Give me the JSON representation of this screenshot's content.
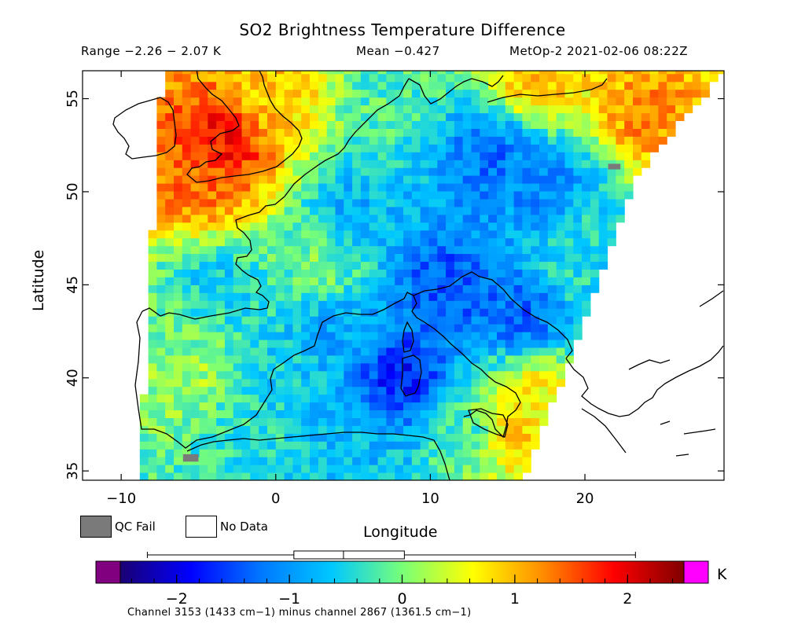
{
  "header": {
    "title": "SO2 Brightness Temperature Difference",
    "range": "Range −2.26 − 2.07 K",
    "mean": "Mean −0.427",
    "satellite": "MetOp-2 2021-02-06 08:22Z"
  },
  "legend": {
    "qc_fail": "QC Fail",
    "no_data": "No Data",
    "qc_color": "#7a7a7a",
    "nodata_color": "#ffffff"
  },
  "colorbar": {
    "unit": "K",
    "min": -2.5,
    "max": 2.5,
    "ticks": [
      -2,
      -1,
      0,
      1,
      2
    ],
    "tick_labels": [
      "−2",
      "−1",
      "0",
      "1",
      "2"
    ],
    "low_overflow_color": "#800080",
    "high_overflow_color": "#ff00ff",
    "colors": [
      "#1a0073",
      "#0000ff",
      "#0078ff",
      "#00c8ff",
      "#78ff78",
      "#ffff00",
      "#ff8c00",
      "#ff0000",
      "#800000"
    ],
    "caption": "Channel 3153 (1433 cm−1) minus channel 2867 (1361.5 cm−1)",
    "boxplot": {
      "whisker_low": -2.26,
      "q1": -0.96,
      "median": -0.52,
      "q3": 0.02,
      "whisker_high": 2.07
    }
  },
  "chart_data": {
    "type": "heatmap",
    "title": "SO2 Brightness Temperature Difference",
    "xlabel": "Longitude",
    "ylabel": "Latitude",
    "xlim": [
      -12.5,
      29
    ],
    "ylim": [
      34.5,
      56.5
    ],
    "xticks": [
      -10,
      0,
      10,
      20
    ],
    "yticks": [
      35,
      40,
      45,
      50,
      55
    ],
    "value_range": [
      -2.26,
      2.07
    ],
    "mean": -0.427,
    "units": "K",
    "swath_west_edge": [
      [
        -7.3,
        56.5
      ],
      [
        -8.2,
        45
      ],
      [
        -8.8,
        34.5
      ]
    ],
    "swath_east_edge": [
      [
        29,
        56.5
      ],
      [
        23.5,
        51
      ],
      [
        19.5,
        42
      ],
      [
        16,
        34.5
      ]
    ],
    "regions": [
      {
        "lon": -3.5,
        "lat": 52.5,
        "value": 1.9
      },
      {
        "lon": -5,
        "lat": 50.5,
        "value": 1.4
      },
      {
        "lon": 0,
        "lat": 55.5,
        "value": 0.9
      },
      {
        "lon": 24,
        "lat": 54,
        "value": 1.3
      },
      {
        "lon": 17,
        "lat": 56,
        "value": 1.0
      },
      {
        "lon": 27,
        "lat": 52,
        "value": 0.9
      },
      {
        "lon": 7,
        "lat": 55,
        "value": -0.2
      },
      {
        "lon": 14,
        "lat": 52,
        "value": -1.3
      },
      {
        "lon": 18,
        "lat": 50,
        "value": -1.2
      },
      {
        "lon": 5,
        "lat": 49,
        "value": -0.8
      },
      {
        "lon": 3,
        "lat": 46,
        "value": 0.0
      },
      {
        "lon": 11,
        "lat": 45,
        "value": -1.5
      },
      {
        "lon": 16,
        "lat": 43.5,
        "value": -1.4
      },
      {
        "lon": 8,
        "lat": 40,
        "value": -1.8
      },
      {
        "lon": 4,
        "lat": 42.5,
        "value": -0.9
      },
      {
        "lon": 1,
        "lat": 40,
        "value": -0.6
      },
      {
        "lon": -4,
        "lat": 45,
        "value": -0.6
      },
      {
        "lon": -5.5,
        "lat": 40,
        "value": 0.2
      },
      {
        "lon": -2,
        "lat": 37,
        "value": -0.4
      },
      {
        "lon": 5,
        "lat": 36,
        "value": -0.7
      },
      {
        "lon": 13,
        "lat": 37,
        "value": -0.3
      },
      {
        "lon": 15,
        "lat": 37,
        "value": 1.0
      },
      {
        "lon": 17,
        "lat": 39,
        "value": 0.7
      },
      {
        "lon": 19,
        "lat": 46,
        "value": -0.4
      },
      {
        "lon": 20,
        "lat": 49,
        "value": -0.5
      },
      {
        "lon": -7,
        "lat": 42,
        "value": 0.0
      }
    ]
  }
}
